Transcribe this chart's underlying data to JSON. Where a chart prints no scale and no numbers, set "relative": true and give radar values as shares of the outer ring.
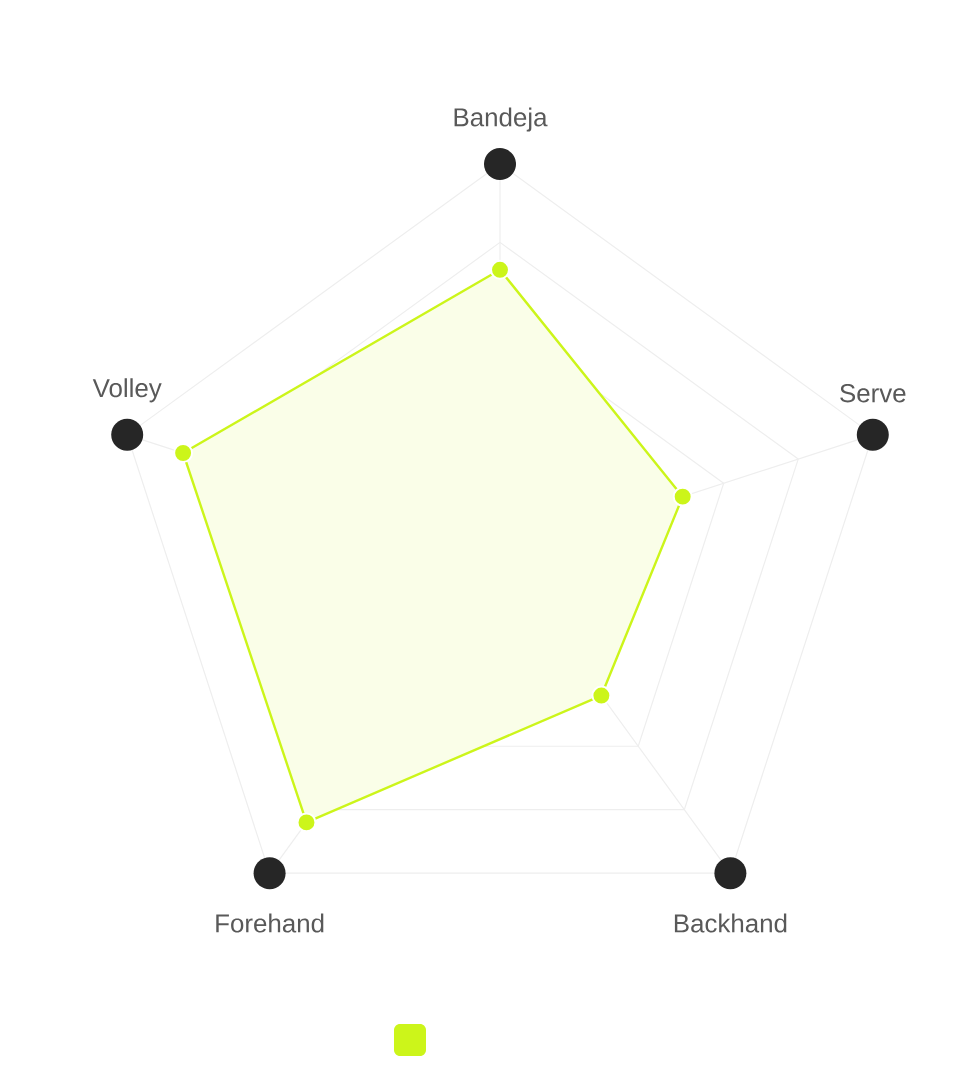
{
  "chart_data": {
    "type": "radar",
    "relative": true,
    "categories": [
      "Bandeja",
      "Serve",
      "Backhand",
      "Forehand",
      "Volley"
    ],
    "series": [
      {
        "color": "#ccf51a",
        "values": [
          0.73,
          0.49,
          0.44,
          0.84,
          0.85
        ]
      }
    ],
    "grid": true,
    "marker": "circle"
  }
}
